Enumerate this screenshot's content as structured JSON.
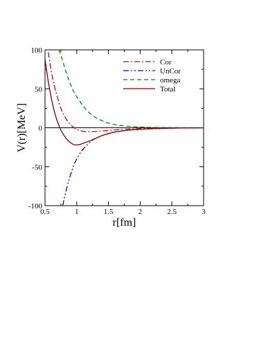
{
  "chart_data": {
    "type": "line",
    "xlabel": "r[fm]",
    "ylabel": "V(r)[MeV]",
    "xlim": [
      0.5,
      3
    ],
    "ylim": [
      -100,
      100
    ],
    "xticks": [
      0.5,
      1,
      1.5,
      2,
      2.5,
      3
    ],
    "xtick_labels": [
      "0.5",
      "1",
      "1.5",
      "2",
      "2.5",
      "3"
    ],
    "yticks": [
      -100,
      -50,
      0,
      50,
      100
    ],
    "ytick_labels": [
      "-100",
      "-50",
      "0",
      "50",
      "100"
    ],
    "zero_line": true,
    "grid": false,
    "legend_position": "top-right",
    "series": [
      {
        "name": "Cor",
        "color": "#cc0000",
        "dash": "dash-dot",
        "x": [
          0.5,
          0.55,
          0.6,
          0.65,
          0.7,
          0.75,
          0.8,
          0.85,
          0.9,
          0.95,
          1.0,
          1.1,
          1.2,
          1.3,
          1.4,
          1.5,
          1.6,
          1.8,
          2.0,
          2.2,
          2.5,
          2.8,
          3.0
        ],
        "y": [
          125,
          98,
          72,
          53,
          38,
          25,
          16,
          9,
          4,
          0.5,
          -2,
          -4.5,
          -5,
          -4.8,
          -4.2,
          -3.5,
          -2.8,
          -1.8,
          -1.1,
          -0.6,
          -0.3,
          -0.1,
          0
        ]
      },
      {
        "name": "UnCor",
        "color": "#0000cc",
        "dash": "dash-dot-dot",
        "x": [
          0.78,
          0.8,
          0.85,
          0.9,
          0.95,
          1.0,
          1.05,
          1.1,
          1.2,
          1.3,
          1.4,
          1.5,
          1.6,
          1.8,
          2.0,
          2.2,
          2.5,
          2.8,
          3.0
        ],
        "y": [
          -100,
          -92,
          -75,
          -61,
          -49,
          -40,
          -33,
          -27.5,
          -19,
          -13.5,
          -10,
          -7.5,
          -5.5,
          -3.2,
          -2,
          -1.2,
          -0.5,
          -0.2,
          -0.1
        ]
      },
      {
        "name": "omega",
        "color": "#008800",
        "dash": "dashed",
        "x": [
          0.72,
          0.75,
          0.8,
          0.85,
          0.9,
          0.95,
          1.0,
          1.1,
          1.2,
          1.3,
          1.4,
          1.5,
          1.6,
          1.8,
          2.0,
          2.2,
          2.5,
          2.8,
          3.0
        ],
        "y": [
          100,
          93,
          80,
          67,
          56,
          47,
          40,
          28,
          19,
          13,
          9,
          6,
          4,
          2,
          1,
          0.5,
          0.2,
          0.1,
          0
        ]
      },
      {
        "name": "Total",
        "color": "#7a0000",
        "dash": "solid",
        "x": [
          0.5,
          0.55,
          0.6,
          0.65,
          0.7,
          0.75,
          0.8,
          0.85,
          0.9,
          0.95,
          1.0,
          1.05,
          1.1,
          1.2,
          1.3,
          1.4,
          1.5,
          1.6,
          1.8,
          2.0,
          2.2,
          2.5,
          2.8,
          3.0
        ],
        "y": [
          88,
          60,
          38,
          20,
          7,
          -3,
          -10,
          -15,
          -19,
          -21.5,
          -22,
          -21.5,
          -20,
          -17,
          -13.5,
          -10,
          -7.5,
          -5.5,
          -3.2,
          -2,
          -1.2,
          -0.5,
          -0.2,
          -0.1
        ]
      }
    ]
  }
}
